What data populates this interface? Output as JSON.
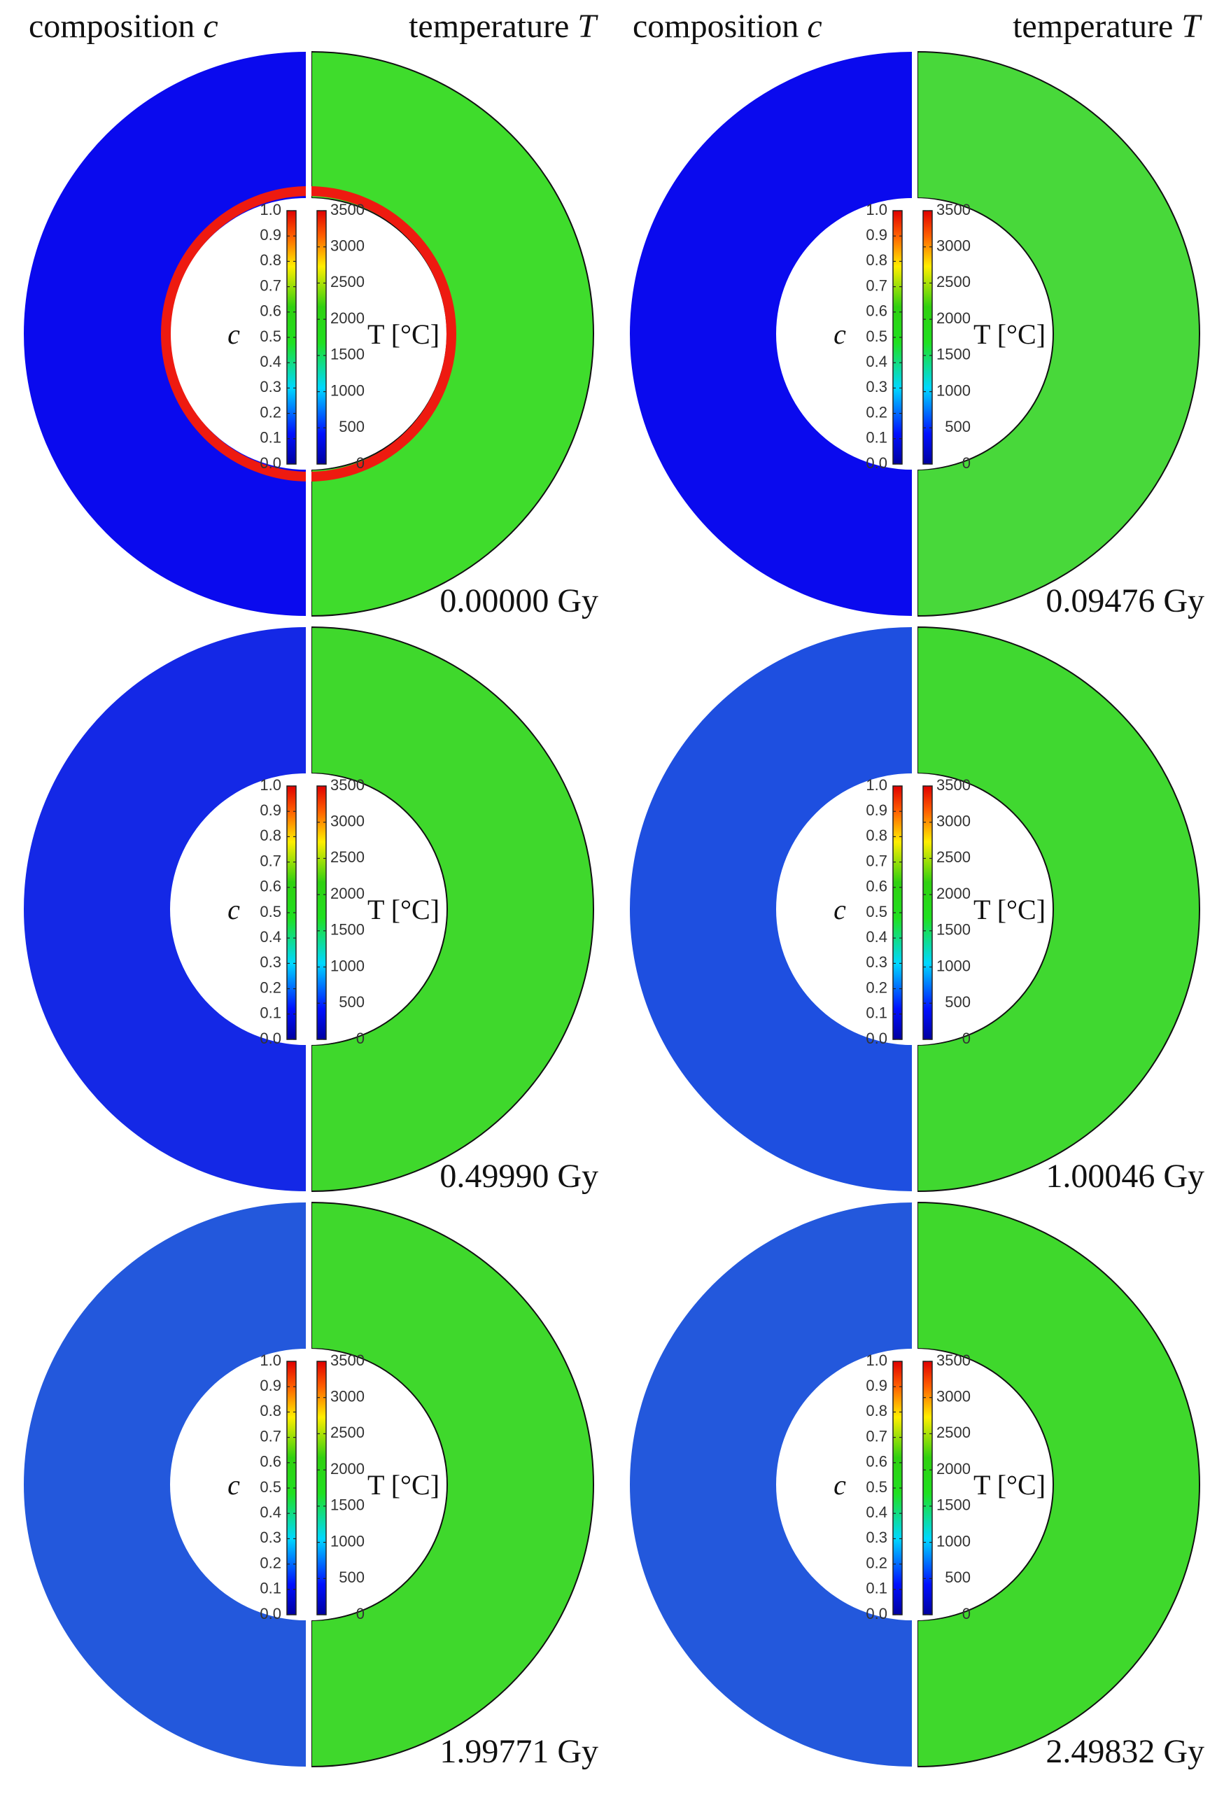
{
  "headers": [
    {
      "composition": {
        "text": "composition",
        "symbol": "c"
      },
      "temperature": {
        "text": "temperature",
        "symbol": "T"
      }
    },
    {
      "composition": {
        "text": "composition",
        "symbol": "c"
      },
      "temperature": {
        "text": "temperature",
        "symbol": "T"
      }
    }
  ],
  "colorbars": {
    "composition": {
      "label": "c",
      "lim": [
        0,
        1
      ],
      "ticks": [
        {
          "value": 0,
          "label": "0.0"
        },
        0.1,
        0.2,
        0.3,
        0.4,
        0.5,
        0.6,
        0.7,
        0.8,
        0.9,
        {
          "value": 1,
          "label": "1.0"
        }
      ]
    },
    "temperature": {
      "label": "T [°C]",
      "lim": [
        0,
        3500
      ],
      "ticks": [
        0,
        500,
        1000,
        1500,
        2000,
        2500,
        3000,
        3500
      ]
    }
  },
  "panels": [
    {
      "time": "0.00000 Gy",
      "composition_color": "#0a0aee",
      "temperature_color": "#3fdc2c"
    },
    {
      "time": "0.09476 Gy",
      "composition_color": "#0a0aee",
      "temperature_color": "#48d83a"
    },
    {
      "time": "0.49990 Gy",
      "composition_color": "#1428e6",
      "temperature_color": "#3fd82c"
    },
    {
      "time": "1.00046 Gy",
      "composition_color": "#1e4fe0",
      "temperature_color": "#40d830"
    },
    {
      "time": "1.99771 Gy",
      "composition_color": "#2358dc",
      "temperature_color": "#3fd82c"
    },
    {
      "time": "2.49832 Gy",
      "composition_color": "#2358dc",
      "temperature_color": "#3fd82c"
    }
  ]
}
